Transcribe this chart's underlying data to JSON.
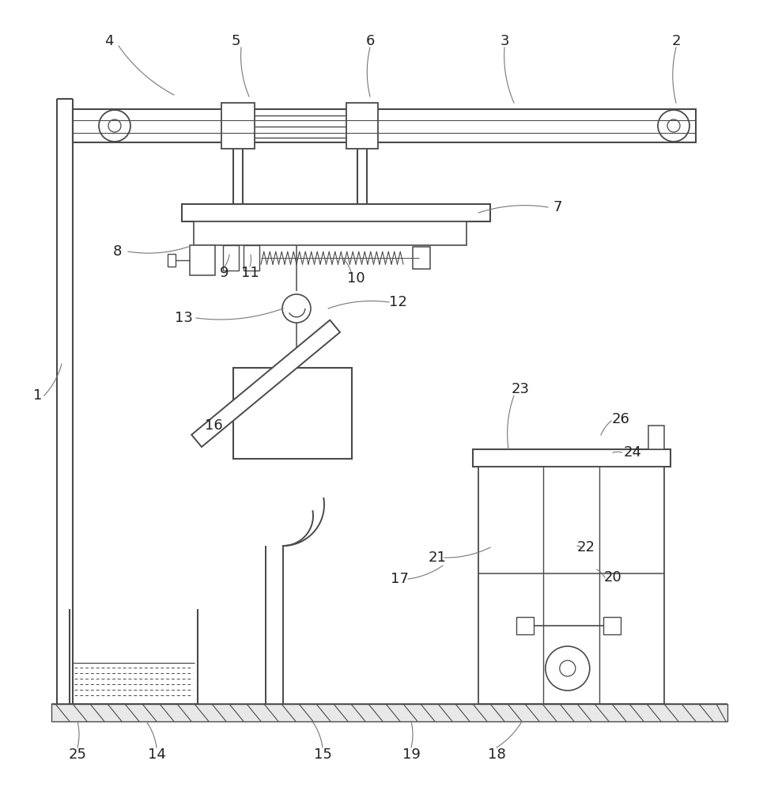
{
  "bg_color": "#ffffff",
  "line_color": "#4a4a4a",
  "lw_main": 1.4,
  "lw_thin": 0.9,
  "fig_width": 9.89,
  "fig_height": 10.0
}
